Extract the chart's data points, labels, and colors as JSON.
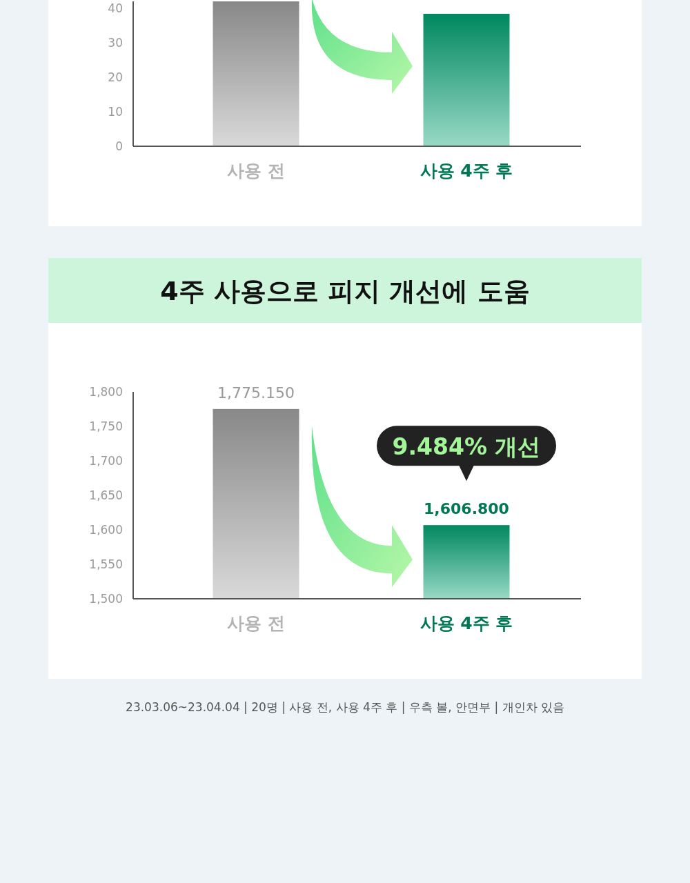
{
  "chart_data": [
    {
      "type": "bar",
      "categories": [
        "사용 전",
        "사용 4주 후"
      ],
      "colors": [
        "#a0a0a0",
        "#00a070"
      ],
      "values": [
        42,
        38.4
      ],
      "ylim": [
        0,
        42
      ],
      "yticks": [
        0,
        10,
        20,
        30,
        40
      ],
      "grid": false
    },
    {
      "type": "bar",
      "title": "4주 사용으로 피지 개선에 도움",
      "categories": [
        "사용 전",
        "사용 4주 후"
      ],
      "colors": [
        "#a0a0a0",
        "#00a070"
      ],
      "values": [
        1775.15,
        1606.8
      ],
      "value_labels": [
        "1,775.150",
        "1,606.800"
      ],
      "ylim": [
        1500,
        1800
      ],
      "yticks": [
        {
          "value": 1500,
          "label": "1,500"
        },
        {
          "value": 1550,
          "label": "1,550"
        },
        {
          "value": 1600,
          "label": "1,600"
        },
        {
          "value": 1650,
          "label": "1,650"
        },
        {
          "value": 1700,
          "label": "1,700"
        },
        {
          "value": 1750,
          "label": "1,750"
        },
        {
          "value": 1800,
          "label": "1,800"
        }
      ],
      "grid": false,
      "annotations": [
        {
          "text": "9.484% 개선",
          "x": "사용 4주 후",
          "y": 1606.8
        },
        "23.03.06~23.04.04 | 20명 | 사용 전, 사용 4주 후 | 우측 볼, 안면부 | 개인차 있음"
      ]
    }
  ]
}
